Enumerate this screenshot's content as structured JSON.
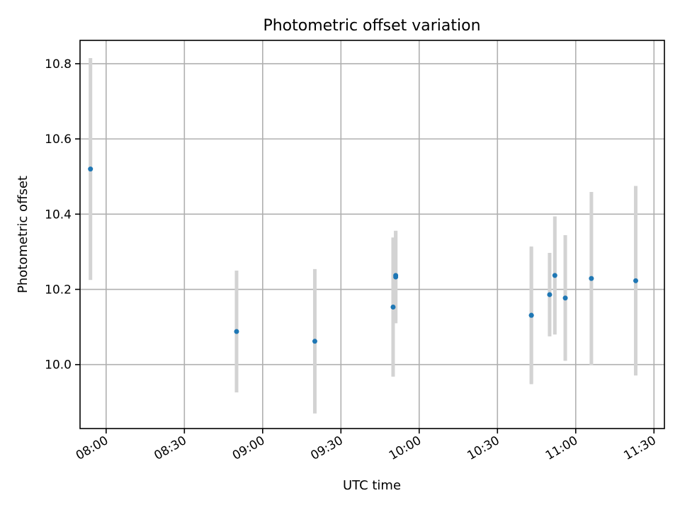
{
  "chart_data": {
    "type": "scatter",
    "title": "Photometric offset variation",
    "xlabel": "UTC time",
    "ylabel": "Photometric offset",
    "x_ticks": [
      "08:00",
      "08:30",
      "09:00",
      "09:30",
      "10:00",
      "10:30",
      "11:00",
      "11:30"
    ],
    "y_ticks": [
      "10.0",
      "10.2",
      "10.4",
      "10.6",
      "10.8"
    ],
    "xlim": [
      "07:50",
      "11:34"
    ],
    "ylim": [
      9.83,
      10.862
    ],
    "grid": true,
    "point_color": "#1f77b4",
    "errorbar_color": "#d3d3d3",
    "points": [
      {
        "time": "07:54",
        "y": 10.52,
        "yerr": 0.295
      },
      {
        "time": "08:50",
        "y": 10.088,
        "yerr": 0.162
      },
      {
        "time": "09:20",
        "y": 10.062,
        "yerr": 0.192
      },
      {
        "time": "09:50",
        "y": 10.153,
        "yerr": 0.185
      },
      {
        "time": "09:51",
        "y": 10.233,
        "yerr": 0.123
      },
      {
        "time": "09:51",
        "y": 10.237,
        "yerr": 0.118
      },
      {
        "time": "10:43",
        "y": 10.131,
        "yerr": 0.183
      },
      {
        "time": "10:43",
        "y": 10.131,
        "yerr": 0.18
      },
      {
        "time": "10:50",
        "y": 10.186,
        "yerr": 0.111
      },
      {
        "time": "10:52",
        "y": 10.237,
        "yerr": 0.157
      },
      {
        "time": "10:56",
        "y": 10.177,
        "yerr": 0.167
      },
      {
        "time": "11:06",
        "y": 10.229,
        "yerr": 0.23
      },
      {
        "time": "11:23",
        "y": 10.223,
        "yerr": 0.252
      }
    ]
  }
}
